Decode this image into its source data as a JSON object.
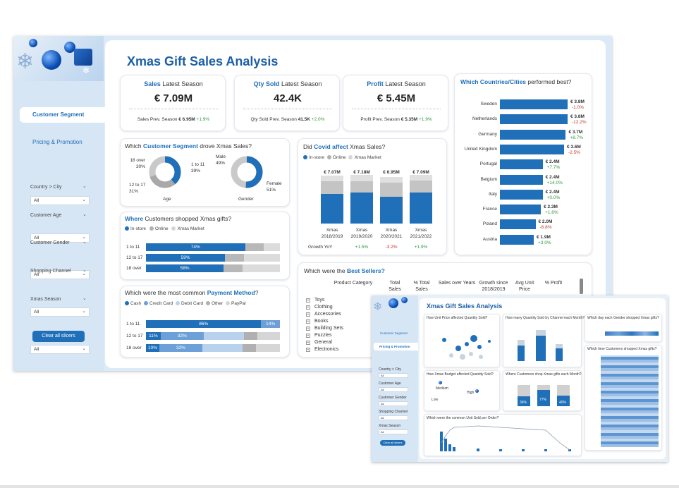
{
  "dashboard": {
    "title": "Xmas Gift Sales Analysis"
  },
  "nav": {
    "segment": "Customer Segment",
    "pricing": "Pricing & Promotion"
  },
  "slicers": [
    {
      "label": "Country > City",
      "value": "All"
    },
    {
      "label": "Customer Age",
      "value": "All"
    },
    {
      "label": "Customer Gender",
      "value": "All"
    },
    {
      "label": "Shopping Channel",
      "value": "All"
    },
    {
      "label": "Xmas Season",
      "value": "All"
    }
  ],
  "clear_btn": "Clear all slicers",
  "kpi": [
    {
      "bold": "Sales",
      "rest": " Latest Season",
      "value": "€ 7.09M",
      "prev_label": "Sales Prev. Season ",
      "prev_value": "€ 6.95M",
      "delta": "+1.9%"
    },
    {
      "bold": "Qty Sold",
      "rest": " Latest Season",
      "value": "42.4K",
      "prev_label": "Qty Sold Prev. Season ",
      "prev_value": "41.5K",
      "delta": "+2.0%"
    },
    {
      "bold": "Profit",
      "rest": " Latest Season",
      "value": "€ 5.45M",
      "prev_label": "Profit Prev. Season ",
      "prev_value": "€ 5.35M",
      "delta": "+1.9%"
    }
  ],
  "segment": {
    "title_pre": "Which ",
    "title_bold": "Customer Segment",
    "title_post": " drove Xmas Sales?",
    "age": {
      "label": "Age",
      "slices": [
        {
          "name": "1 to 11",
          "pct": "39%"
        },
        {
          "name": "12 to 17",
          "pct": "31%"
        },
        {
          "name": "18 over",
          "pct": "30%"
        }
      ]
    },
    "gender": {
      "label": "Gender",
      "slices": [
        {
          "name": "Male",
          "pct": "49%"
        },
        {
          "name": "Female",
          "pct": "51%"
        }
      ]
    }
  },
  "where": {
    "title_bold": "Where",
    "title_post": " Customers shopped Xmas gifts?",
    "legend": [
      "In-store",
      "Online",
      "Xmas Market"
    ],
    "rows": [
      {
        "label": "1 to 11",
        "value": "74%"
      },
      {
        "label": "12 to 17",
        "value": "59%"
      },
      {
        "label": "18 over",
        "value": "58%"
      }
    ]
  },
  "payment": {
    "title_pre": "Which were the most common ",
    "title_bold": "Payment Method",
    "title_post": "?",
    "legend": [
      "Cash",
      "Credit Card",
      "Debit Card",
      "Other",
      "PayPal"
    ],
    "rows": [
      {
        "label": "1 to 11",
        "cash": "86%",
        "credit": "",
        "last": "14%"
      },
      {
        "label": "12 to 17",
        "cash": "11%",
        "credit": "32%",
        "last": ""
      },
      {
        "label": "18 over",
        "cash": "10%",
        "credit": "32%",
        "last": ""
      }
    ]
  },
  "covid": {
    "title_pre": "Did ",
    "title_bold": "Covid affect",
    "title_post": " Xmas Sales?",
    "legend": [
      "In-store",
      "Online",
      "Xmas Market"
    ],
    "cols": [
      {
        "total": "€ 7.07M",
        "l1": "Xmas",
        "l2": "2018/2019",
        "growth": ""
      },
      {
        "total": "€ 7.18M",
        "l1": "Xmas",
        "l2": "2019/2020",
        "growth": "+1.5%"
      },
      {
        "total": "€ 6.95M",
        "l1": "Xmas",
        "l2": "2020/2021",
        "growth": "-3.2%"
      },
      {
        "total": "€ 7.09M",
        "l1": "Xmas",
        "l2": "2021/2022",
        "growth": "+1.9%"
      }
    ],
    "growth_label": "Growth YoY"
  },
  "countries": {
    "title_pre": "Which ",
    "title_bold": "Countries/Cities",
    "title_post": " performed best?",
    "rows": [
      {
        "name": "Sweden",
        "value": "€ 3.8M",
        "delta": "-1.0%",
        "sales": 3.8
      },
      {
        "name": "Netherlands",
        "value": "€ 3.8M",
        "delta": "-12.2%",
        "sales": 3.8
      },
      {
        "name": "Germany",
        "value": "€ 3.7M",
        "delta": "+8.7%",
        "sales": 3.7
      },
      {
        "name": "United Kingdom",
        "value": "€ 3.6M",
        "delta": "-2.5%",
        "sales": 3.6
      },
      {
        "name": "Portugal",
        "value": "€ 2.4M",
        "delta": "+7.7%",
        "sales": 2.4
      },
      {
        "name": "Belgium",
        "value": "€ 2.4M",
        "delta": "+14.0%",
        "sales": 2.4
      },
      {
        "name": "Italy",
        "value": "€ 2.4M",
        "delta": "+0.0%",
        "sales": 2.4
      },
      {
        "name": "France",
        "value": "€ 2.3M",
        "delta": "+1.6%",
        "sales": 2.3
      },
      {
        "name": "Poland",
        "value": "€ 2.0M",
        "delta": "-8.8%",
        "sales": 2.0
      },
      {
        "name": "Austria",
        "value": "€ 1.9M",
        "delta": "+3.0%",
        "sales": 1.9
      }
    ]
  },
  "best": {
    "title_pre": "Which were the ",
    "title_bold": "Best Sellers?",
    "headers": [
      "Product Category",
      "Total Sales",
      "% Total Sales",
      "Sales over Years",
      "Growth since 2018/2019",
      "Avg Unit Price",
      "% Profit"
    ],
    "cats": [
      "Toys",
      "Clothing",
      "Accessories",
      "Books",
      "Building Sets",
      "Puzzles",
      "General",
      "Electronics"
    ]
  },
  "inset": {
    "title": "Xmas Gift Sales Analysis",
    "nav": [
      "Customer Segment",
      "Pricing & Promotion"
    ],
    "slicers": [
      "Country > City",
      "Customer Age",
      "Customer Gender",
      "Shopping Channel",
      "Xmas Season"
    ],
    "slicer_value": "All",
    "clear": "Clear all slicers",
    "c1": "How Unit Price affected Quantity Sold?",
    "c2": "How many Quantity Sold by Channel each Month?",
    "c3": "Which day each Gender shopped Xmas gifts?",
    "c4": "How Xmas Budget affected Quantity Sold?",
    "c5": "Where Customers shop Xmas gifts each Month?",
    "c6": "Which time Customers shopped Xmas gifts?",
    "c7": "Which were the common Unit Sold per Order?",
    "c4_labels": [
      "Low",
      "Medium",
      "High"
    ],
    "c5_values": [
      "36%",
      "77%",
      "40%"
    ]
  }
}
